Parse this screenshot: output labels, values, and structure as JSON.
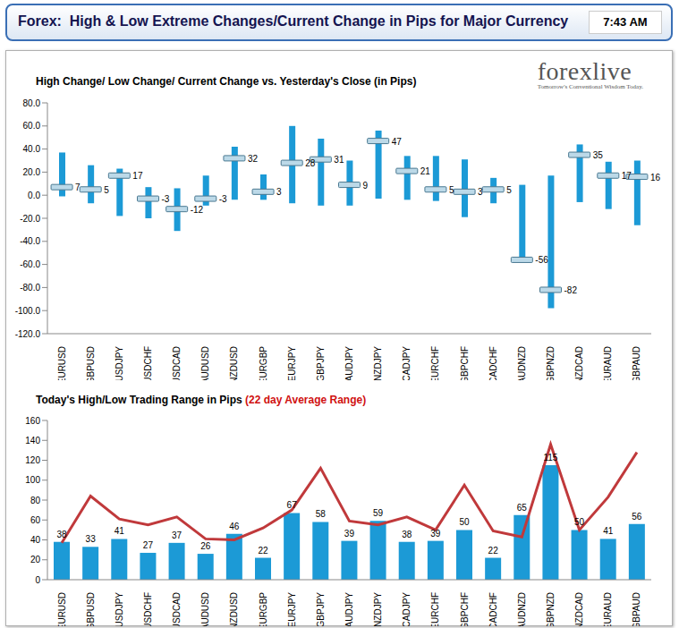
{
  "header": {
    "title": "Forex:  High & Low Extreme Changes/Current Change in Pips for Major Currency",
    "time": "7:43 AM"
  },
  "logo": {
    "name": "forexlive",
    "tagline": "Tomorrow's Conventional Wisdom Today."
  },
  "chart_data": [
    {
      "type": "range",
      "title": "High Change/ Low Change/ Current Change vs. Yesterday's Close (in Pips)",
      "categories": [
        "EURUSD",
        "GBPUSD",
        "USDJPY",
        "USDCHF",
        "USDCAD",
        "AUDUSD",
        "NZDUSD",
        "EURGBP",
        "EURJPY",
        "GBPJPY",
        "AUDJPY",
        "NZDJPY",
        "CADJPY",
        "EURCHF",
        "GBPCHF",
        "CADCHF",
        "AUDNZD",
        "GBPNZD",
        "NZDCAD",
        "EURAUD",
        "GBPAUD"
      ],
      "values": [
        7,
        5,
        17,
        -3,
        -12,
        -3,
        32,
        3,
        28,
        31,
        9,
        47,
        21,
        5,
        3,
        5,
        -56,
        -82,
        35,
        17,
        16
      ],
      "high": [
        37,
        26,
        23,
        7,
        6,
        17,
        42,
        18,
        60,
        49,
        30,
        56,
        34,
        34,
        31,
        15,
        9,
        17,
        44,
        29,
        30
      ],
      "low": [
        -1,
        -7,
        -18,
        -20,
        -31,
        -9,
        -4,
        -4,
        -7,
        -9,
        -9,
        -3,
        -4,
        -5,
        -19,
        -7,
        -56,
        -98,
        -6,
        -12,
        -26
      ],
      "color": "#1c9ad6",
      "data_labels": true,
      "grid": false,
      "ylim": [
        -120,
        80
      ],
      "yticks": [
        {
          "value": -120,
          "label": "-120.0"
        },
        {
          "value": -100,
          "label": "-100.0"
        },
        {
          "value": -80,
          "label": "-80.0"
        },
        {
          "value": -60,
          "label": "-60.0"
        },
        {
          "value": -40,
          "label": "-40.0"
        },
        {
          "value": -20,
          "label": "-20.0"
        },
        {
          "value": 0,
          "label": "0.0"
        },
        {
          "value": 20,
          "label": "20.0"
        },
        {
          "value": 40,
          "label": "40.0"
        },
        {
          "value": 60,
          "label": "60.0"
        },
        {
          "value": 80,
          "label": "80.0"
        }
      ]
    },
    {
      "type": "bar",
      "title": "Today's High/Low Trading Range in Pips",
      "subtitle": "(22 day Average Range)",
      "categories": [
        "EURUSD",
        "GBPUSD",
        "USDJPY",
        "USDCHF",
        "USDCAD",
        "AUDUSD",
        "NZDUSD",
        "EURGBP",
        "EURJPY",
        "GBPJPY",
        "AUDJPY",
        "NZDJPY",
        "CADJPY",
        "EURCHF",
        "GBPCHF",
        "CADCHF",
        "AUDNZD",
        "GBPNZD",
        "NZDCAD",
        "EURAUD",
        "GBPAUD"
      ],
      "series": [
        {
          "type": "bar",
          "color": "#1c9ad6",
          "data_labels": true,
          "values": [
            38,
            33,
            41,
            27,
            37,
            26,
            46,
            22,
            67,
            58,
            39,
            59,
            38,
            39,
            50,
            22,
            65,
            115,
            50,
            41,
            56
          ]
        },
        {
          "type": "line",
          "color": "#c0393b",
          "values": [
            37,
            84,
            61,
            55,
            63,
            41,
            40,
            52,
            70,
            112,
            59,
            55,
            63,
            50,
            95,
            49,
            43,
            136,
            50,
            83,
            128
          ]
        }
      ],
      "grid": false,
      "ylim": [
        0,
        160
      ],
      "yticks": [
        0,
        20,
        40,
        60,
        80,
        100,
        120,
        140,
        160
      ]
    }
  ]
}
